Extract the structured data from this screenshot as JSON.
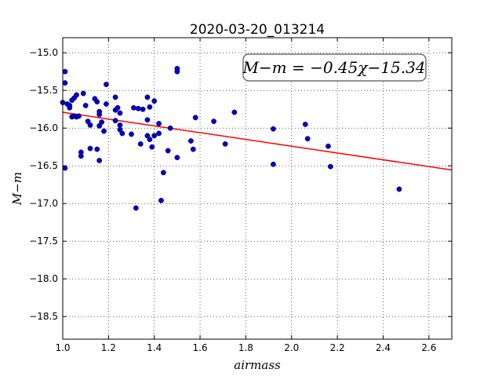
{
  "chart_data": {
    "type": "scatter",
    "title": "2020-03-20_013214",
    "xlabel": "airmass",
    "ylabel": "M−m",
    "xlim": [
      1.0,
      2.7
    ],
    "ylim": [
      -18.8,
      -14.8
    ],
    "y_inverted": true,
    "x_ticks": [
      1.0,
      1.2,
      1.4,
      1.6,
      1.8,
      2.0,
      2.2,
      2.4,
      2.6
    ],
    "x_tick_labels": [
      "1.0",
      "1.2",
      "1.4",
      "1.6",
      "1.8",
      "2.0",
      "2.2",
      "2.4",
      "2.6"
    ],
    "y_ticks": [
      -15.0,
      -15.5,
      -16.0,
      -16.5,
      -17.0,
      -17.5,
      -18.0,
      -18.5
    ],
    "y_tick_labels": [
      "−15.0",
      "−15.5",
      "−16.0",
      "−16.5",
      "−17.0",
      "−17.5",
      "−18.0",
      "−18.5"
    ],
    "grid": true,
    "annotation": "M−m = −0.45χ−15.34",
    "fit": {
      "slope": -0.45,
      "intercept": -15.34,
      "color": "#ff0000"
    },
    "point_color": "#0000cc",
    "points": [
      [
        1.0,
        -15.66
      ],
      [
        1.01,
        -15.25
      ],
      [
        1.01,
        -15.4
      ],
      [
        1.01,
        -16.53
      ],
      [
        1.02,
        -15.68
      ],
      [
        1.03,
        -15.73
      ],
      [
        1.03,
        -15.7
      ],
      [
        1.04,
        -15.63
      ],
      [
        1.04,
        -15.85
      ],
      [
        1.05,
        -15.6
      ],
      [
        1.05,
        -15.84
      ],
      [
        1.06,
        -15.56
      ],
      [
        1.06,
        -15.85
      ],
      [
        1.07,
        -15.84
      ],
      [
        1.08,
        -16.32
      ],
      [
        1.08,
        -16.37
      ],
      [
        1.09,
        -15.54
      ],
      [
        1.1,
        -15.7
      ],
      [
        1.11,
        -15.91
      ],
      [
        1.12,
        -15.96
      ],
      [
        1.12,
        -16.27
      ],
      [
        1.14,
        -15.61
      ],
      [
        1.15,
        -15.65
      ],
      [
        1.15,
        -16.28
      ],
      [
        1.16,
        -15.78
      ],
      [
        1.16,
        -15.82
      ],
      [
        1.16,
        -16.43
      ],
      [
        1.16,
        -15.97
      ],
      [
        1.17,
        -15.92
      ],
      [
        1.18,
        -16.04
      ],
      [
        1.19,
        -15.42
      ],
      [
        1.19,
        -15.68
      ],
      [
        1.23,
        -15.59
      ],
      [
        1.23,
        -15.76
      ],
      [
        1.23,
        -15.9
      ],
      [
        1.24,
        -15.73
      ],
      [
        1.25,
        -15.96
      ],
      [
        1.25,
        -15.8
      ],
      [
        1.25,
        -16.02
      ],
      [
        1.26,
        -16.07
      ],
      [
        1.3,
        -16.08
      ],
      [
        1.31,
        -15.73
      ],
      [
        1.32,
        -17.06
      ],
      [
        1.33,
        -15.74
      ],
      [
        1.34,
        -16.21
      ],
      [
        1.35,
        -15.75
      ],
      [
        1.37,
        -15.59
      ],
      [
        1.37,
        -15.89
      ],
      [
        1.37,
        -16.1
      ],
      [
        1.38,
        -15.72
      ],
      [
        1.38,
        -16.15
      ],
      [
        1.39,
        -16.25
      ],
      [
        1.4,
        -15.64
      ],
      [
        1.4,
        -16.1
      ],
      [
        1.42,
        -16.07
      ],
      [
        1.42,
        -15.94
      ],
      [
        1.43,
        -16.96
      ],
      [
        1.44,
        -16.59
      ],
      [
        1.46,
        -16.3
      ],
      [
        1.47,
        -16.0
      ],
      [
        1.5,
        -15.21
      ],
      [
        1.5,
        -15.25
      ],
      [
        1.5,
        -16.39
      ],
      [
        1.56,
        -16.17
      ],
      [
        1.57,
        -16.28
      ],
      [
        1.58,
        -15.86
      ],
      [
        1.66,
        -15.91
      ],
      [
        1.71,
        -16.21
      ],
      [
        1.75,
        -15.79
      ],
      [
        1.92,
        -16.01
      ],
      [
        1.92,
        -16.48
      ],
      [
        2.06,
        -15.95
      ],
      [
        2.07,
        -16.14
      ],
      [
        2.16,
        -16.24
      ],
      [
        2.17,
        -16.51
      ],
      [
        2.47,
        -16.81
      ]
    ]
  }
}
